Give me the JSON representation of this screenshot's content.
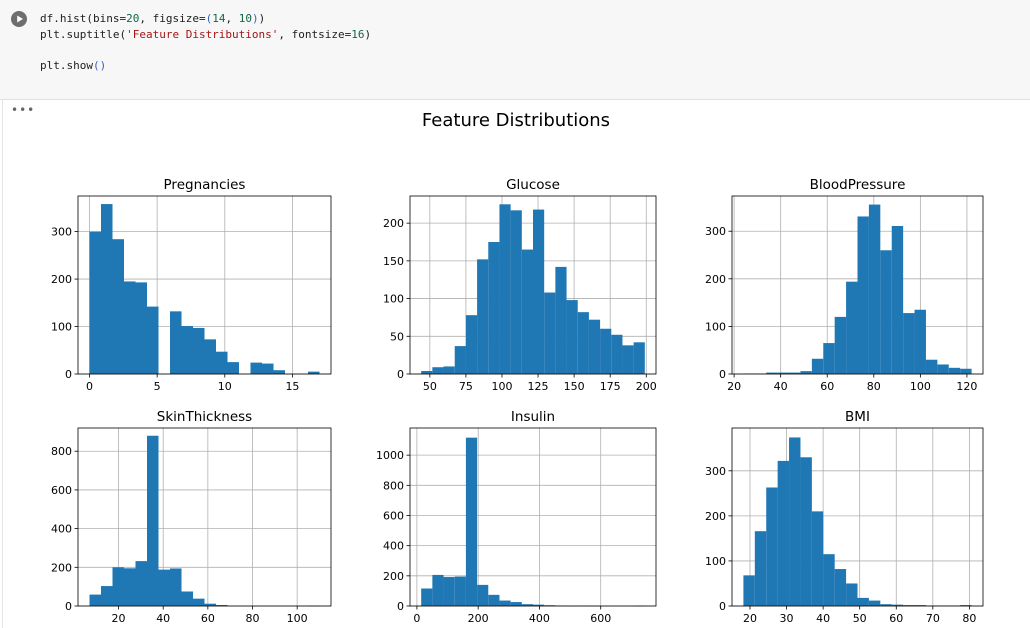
{
  "cell": {
    "code_lines": [
      [
        {
          "t": "df.hist(bins=",
          "c": "fn"
        },
        {
          "t": "20",
          "c": "num"
        },
        {
          "t": ", figsize=",
          "c": "fn"
        },
        {
          "t": "(",
          "c": "paren"
        },
        {
          "t": "14",
          "c": "num"
        },
        {
          "t": ", ",
          "c": "fn"
        },
        {
          "t": "10",
          "c": "num"
        },
        {
          "t": ")",
          "c": "paren"
        },
        {
          "t": ")",
          "c": "fn"
        }
      ],
      [
        {
          "t": "plt.suptitle(",
          "c": "fn"
        },
        {
          "t": "'Feature Distributions'",
          "c": "str"
        },
        {
          "t": ", fontsize=",
          "c": "fn"
        },
        {
          "t": "16",
          "c": "num"
        },
        {
          "t": ")",
          "c": "fn"
        }
      ],
      [],
      [
        {
          "t": "plt.show",
          "c": "fn"
        },
        {
          "t": "()",
          "c": "paren"
        }
      ]
    ],
    "run_icon": "play-icon",
    "output_menu": "•••"
  },
  "figure": {
    "suptitle": "Feature Distributions",
    "bar_color": "#1f77b4"
  },
  "chart_data": [
    {
      "type": "bar",
      "title": "Pregnancies",
      "x_edges_range": [
        0,
        17
      ],
      "xlim": [
        -0.85,
        17.85
      ],
      "ylim": [
        0,
        375
      ],
      "xticks": [
        0,
        5,
        10,
        15
      ],
      "yticks": [
        0,
        100,
        200,
        300
      ],
      "values": [
        300,
        358,
        284,
        195,
        193,
        142,
        0,
        132,
        101,
        97,
        73,
        47,
        25,
        0,
        24,
        22,
        8,
        0,
        0,
        5
      ]
    },
    {
      "type": "bar",
      "title": "Glucose",
      "x_edges_range": [
        44,
        199
      ],
      "xlim": [
        36.25,
        206.75
      ],
      "ylim": [
        0,
        236
      ],
      "xticks": [
        50,
        75,
        100,
        125,
        150,
        175,
        200
      ],
      "yticks": [
        0,
        50,
        100,
        150,
        200
      ],
      "values": [
        4,
        9,
        10,
        37,
        78,
        152,
        175,
        225,
        217,
        165,
        218,
        108,
        142,
        98,
        82,
        72,
        60,
        52,
        38,
        42
      ]
    },
    {
      "type": "bar",
      "title": "BloodPressure",
      "x_edges_range": [
        24,
        122
      ],
      "xlim": [
        19.1,
        126.9
      ],
      "ylim": [
        0,
        374
      ],
      "xticks": [
        20,
        40,
        60,
        80,
        100,
        120
      ],
      "yticks": [
        0,
        100,
        200,
        300
      ],
      "values": [
        1,
        1,
        3,
        3,
        3,
        6,
        32,
        65,
        120,
        194,
        331,
        356,
        260,
        311,
        128,
        135,
        30,
        20,
        13,
        11
      ]
    },
    {
      "type": "bar",
      "title": "SkinThickness",
      "x_edges_range": [
        7,
        110
      ],
      "xlim": [
        1.85,
        115.15
      ],
      "ylim": [
        0,
        920
      ],
      "xticks": [
        20,
        40,
        60,
        80,
        100
      ],
      "yticks": [
        0,
        200,
        400,
        600,
        800
      ],
      "values": [
        59,
        103,
        200,
        195,
        232,
        880,
        188,
        194,
        75,
        38,
        12,
        5,
        0,
        0,
        0,
        0,
        0,
        0,
        0,
        1
      ]
    },
    {
      "type": "bar",
      "title": "Insulin",
      "x_edges_range": [
        14,
        744
      ],
      "xlim": [
        -22.5,
        780.5
      ],
      "ylim": [
        0,
        1180
      ],
      "xticks": [
        0,
        200,
        400,
        600
      ],
      "yticks": [
        0,
        200,
        400,
        600,
        800,
        1000
      ],
      "values": [
        116,
        206,
        192,
        195,
        1116,
        140,
        74,
        36,
        26,
        12,
        9,
        5,
        3,
        1,
        2,
        1,
        0,
        0,
        0,
        1
      ]
    },
    {
      "type": "bar",
      "title": "BMI",
      "x_edges_range": [
        18.2,
        80.6
      ],
      "xlim": [
        15.08,
        83.72
      ],
      "ylim": [
        0,
        395
      ],
      "xticks": [
        20,
        30,
        40,
        50,
        60,
        70,
        80
      ],
      "yticks": [
        0,
        100,
        200,
        300
      ],
      "values": [
        68,
        166,
        263,
        322,
        374,
        330,
        210,
        115,
        82,
        50,
        18,
        12,
        4,
        3,
        2,
        2,
        1,
        1,
        1,
        2
      ]
    }
  ]
}
